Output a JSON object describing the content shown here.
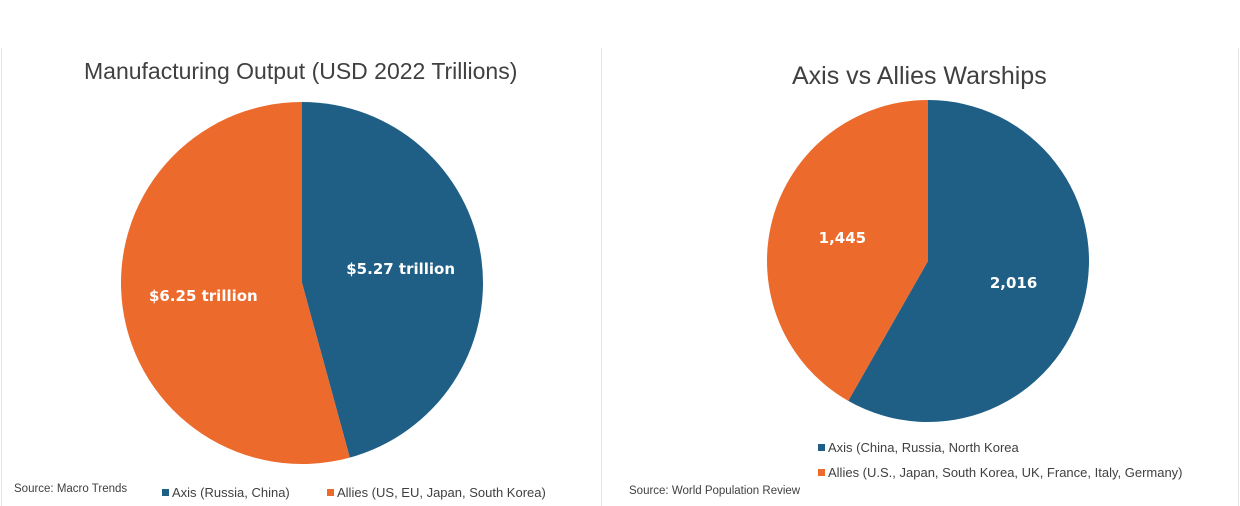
{
  "colors": {
    "axis": "#1f5f86",
    "allies": "#ec6a2b",
    "text": "#404040"
  },
  "left": {
    "source": "Source: Macro Trends",
    "legend": [
      "Axis (Russia, China)",
      "Allies (US, EU, Japan, South Korea)"
    ]
  },
  "right": {
    "source": "Source: World Population Review",
    "legend": [
      "Axis (China, Russia, North Korea",
      "Allies (U.S., Japan, South Korea, UK, France, Italy, Germany)"
    ]
  },
  "chart_data": [
    {
      "type": "pie",
      "title": "Manufacturing Output (USD 2022 Trillions)",
      "categories": [
        "Axis (Russia, China)",
        "Allies (US, EU, Japan, South Korea)"
      ],
      "values": [
        5.27,
        6.25
      ],
      "data_labels": [
        "$5.27 trillion",
        "$6.25 trillion"
      ],
      "legend_position": "bottom"
    },
    {
      "type": "pie",
      "title": "Axis vs Allies Warships",
      "categories": [
        "Axis (China, Russia, North Korea",
        "Allies (U.S., Japan, South Korea, UK, France, Italy, Germany)"
      ],
      "values": [
        2016,
        1445
      ],
      "data_labels": [
        "2,016",
        "1,445"
      ],
      "legend_position": "bottom"
    }
  ]
}
